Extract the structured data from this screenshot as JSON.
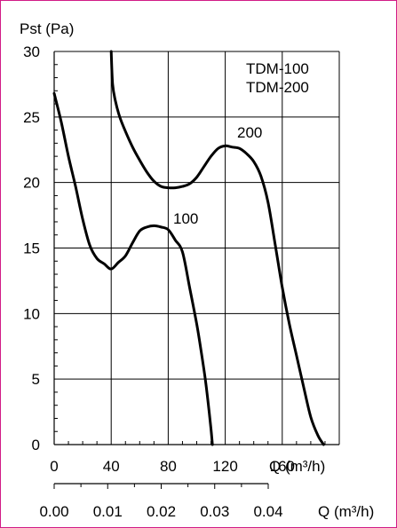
{
  "colors": {
    "frame_border": "#d21b86",
    "grid": "#000000",
    "curve": "#000000",
    "background": "#ffffff"
  },
  "chart_data": {
    "type": "line",
    "title": "",
    "legend_lines": [
      "TDM-100",
      "TDM-200"
    ],
    "ylabel": "Pst (Pa)",
    "xlabel": "Q (m³/h)",
    "xlabel_secondary": "Q (m³/h)",
    "xlim": [
      0,
      200
    ],
    "ylim": [
      0,
      30
    ],
    "x_ticks": [
      0,
      40,
      80,
      120,
      160
    ],
    "x_tick_labels": [
      "0",
      "40",
      "80",
      "120",
      "160"
    ],
    "y_ticks": [
      0,
      5,
      10,
      15,
      20,
      25,
      30
    ],
    "y_tick_labels": [
      "0",
      "5",
      "10",
      "15",
      "20",
      "25",
      "30"
    ],
    "secondary_x_ticks": [
      0.0,
      0.01,
      0.02,
      0.03,
      0.04
    ],
    "secondary_x_tick_labels": [
      "0.00",
      "0.01",
      "0.02",
      "0.03",
      "0.04"
    ],
    "grid": true,
    "series": [
      {
        "name": "100",
        "x": [
          0,
          5,
          10,
          15,
          20,
          25,
          30,
          35,
          40,
          45,
          50,
          55,
          60,
          65,
          70,
          75,
          80,
          85,
          90,
          95,
          100,
          103,
          106,
          108,
          110,
          111
        ],
        "y": [
          26.8,
          24.6,
          22.0,
          19.7,
          17.2,
          15.2,
          14.2,
          13.8,
          13.4,
          13.9,
          14.4,
          15.4,
          16.3,
          16.6,
          16.7,
          16.6,
          16.4,
          15.6,
          14.7,
          12.0,
          9.2,
          7.2,
          5.0,
          3.2,
          1.2,
          0.0
        ]
      },
      {
        "name": "200",
        "x": [
          40,
          41,
          43,
          46,
          50,
          55,
          60,
          65,
          70,
          75,
          80,
          85,
          90,
          95,
          100,
          105,
          110,
          115,
          120,
          125,
          130,
          135,
          140,
          145,
          150,
          155,
          160,
          165,
          170,
          175,
          180,
          185,
          189
        ],
        "y": [
          30.0,
          27.5,
          26.2,
          25.0,
          23.9,
          22.7,
          21.7,
          20.8,
          20.1,
          19.7,
          19.6,
          19.6,
          19.7,
          19.9,
          20.4,
          21.2,
          22.0,
          22.6,
          22.8,
          22.7,
          22.6,
          22.2,
          21.6,
          20.5,
          18.5,
          15.3,
          12.0,
          9.2,
          6.8,
          4.4,
          2.1,
          0.7,
          0.0
        ]
      }
    ]
  }
}
